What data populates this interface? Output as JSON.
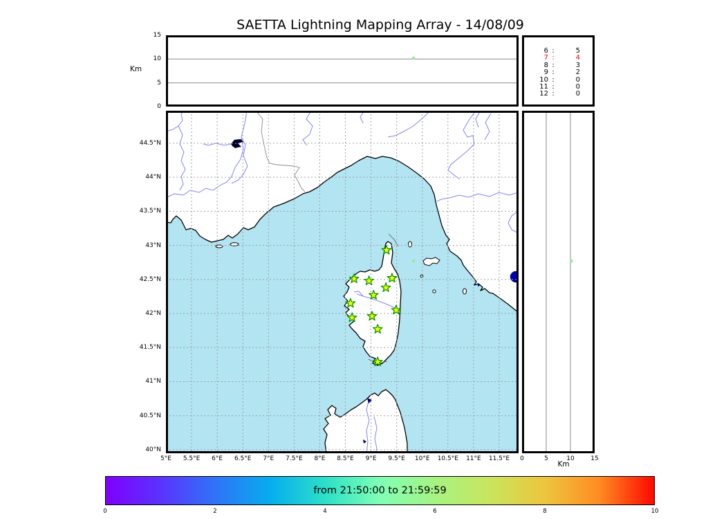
{
  "title": "SAETTA Lightning Mapping Array - 14/08/09",
  "altitude_axis": {
    "label": "Km",
    "ticks": [
      "15",
      "10",
      "5",
      "0"
    ]
  },
  "right_axis": {
    "label": "Km",
    "ticks": [
      "0",
      "5",
      "10",
      "15"
    ]
  },
  "map_axes": {
    "lat_ticks": [
      "44.5°N",
      "44°N",
      "43.5°N",
      "43°N",
      "42.5°N",
      "42°N",
      "41.5°N",
      "41°N",
      "40.5°N",
      "40°N"
    ],
    "lon_ticks": [
      "5°E",
      "5.5°E",
      "6°E",
      "6.5°E",
      "7°E",
      "7.5°E",
      "8°E",
      "8.5°E",
      "9°E",
      "9.5°E",
      "10°E",
      "10.5°E",
      "11°E",
      "11.5°E"
    ]
  },
  "source_count_table": {
    "rows": [
      {
        "key": "6",
        "value": "5",
        "highlight": false
      },
      {
        "key": "7",
        "value": "4",
        "highlight": true
      },
      {
        "key": "8",
        "value": "3",
        "highlight": false
      },
      {
        "key": "9",
        "value": "2",
        "highlight": false
      },
      {
        "key": "10",
        "value": "0",
        "highlight": false
      },
      {
        "key": "11",
        "value": "0",
        "highlight": false
      },
      {
        "key": "12",
        "value": "0",
        "highlight": false
      }
    ]
  },
  "colorbar": {
    "label": "from 21:50:00 to 21:59:59",
    "ticks": [
      "0",
      "2",
      "4",
      "6",
      "8",
      "10"
    ],
    "min": 0,
    "max": 10,
    "colormap": "rainbow"
  },
  "colors": {
    "sea": "#b2e4f2",
    "land": "#ffffff",
    "coast": "#000000",
    "river": "#8282fa",
    "grid": "#a0a0a0",
    "gridline_solid": "#888888",
    "country_border": "#8a8a8a",
    "station_fill": "#ffff00",
    "station_edge": "#009900",
    "source_dot": "#90ee90",
    "highlight_text": "#ff0000",
    "lake": "#0000bb",
    "dark_lake": "#000030"
  },
  "chart_data": {
    "type": "scatter",
    "title": "SAETTA Lightning Mapping Array - 14/08/09",
    "time_window": "from 21:50:00 to 21:59:59",
    "panels": {
      "altitude_vs_longitude": {
        "ylabel": "Km",
        "ylim": [
          0,
          15
        ],
        "yticks": [
          0,
          5,
          10,
          15
        ],
        "gridlines_km": [
          5,
          10
        ]
      },
      "map": {
        "lon_range": [
          5.0,
          11.88
        ],
        "lat_range": [
          39.95,
          44.98
        ],
        "grid_step_deg": 0.5,
        "stations": [
          {
            "lon": 9.3,
            "lat": 42.93
          },
          {
            "lon": 8.67,
            "lat": 42.51
          },
          {
            "lon": 8.96,
            "lat": 42.48
          },
          {
            "lon": 9.41,
            "lat": 42.52
          },
          {
            "lon": 9.29,
            "lat": 42.38
          },
          {
            "lon": 9.05,
            "lat": 42.27
          },
          {
            "lon": 8.6,
            "lat": 42.15
          },
          {
            "lon": 9.49,
            "lat": 42.05
          },
          {
            "lon": 9.02,
            "lat": 41.96
          },
          {
            "lon": 8.63,
            "lat": 41.94
          },
          {
            "lon": 9.13,
            "lat": 41.77
          },
          {
            "lon": 9.13,
            "lat": 41.29
          }
        ],
        "sources": [
          {
            "lon": 9.83,
            "lat": 42.77,
            "alt_km": 10.2,
            "color": "#90ee90"
          }
        ]
      },
      "altitude_vs_latitude": {
        "xlabel": "Km",
        "xlim": [
          0,
          15
        ],
        "xticks": [
          0,
          5,
          10,
          15
        ],
        "gridlines_km": [
          5,
          10
        ]
      }
    },
    "station_count_histogram": {
      "6": 5,
      "7": 4,
      "8": 3,
      "9": 2,
      "10": 0,
      "11": 0,
      "12": 0,
      "highlighted_row": "7"
    },
    "colorbar": {
      "range": [
        0,
        10
      ],
      "ticks": [
        0,
        2,
        4,
        6,
        8,
        10
      ],
      "label": "from 21:50:00 to 21:59:59",
      "colormap": "rainbow"
    }
  }
}
